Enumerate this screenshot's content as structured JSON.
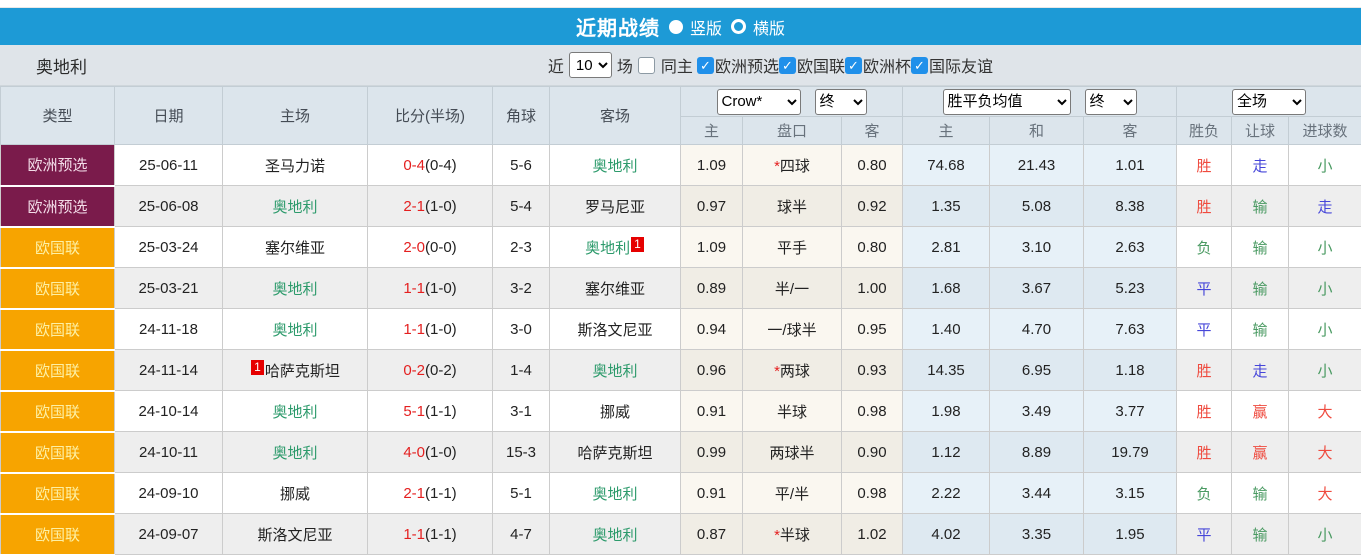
{
  "colors": {
    "accent_blue": "#1d9ad6",
    "type_maroon": "#7a1b4b",
    "type_orange": "#f7a400",
    "score_red": "#e41f1f",
    "team_green": "#2c9a6b",
    "result_red": "#ef4b3f",
    "result_green": "#4a9a62",
    "result_blue": "#4646d9",
    "checkbox_blue": "#2090ea"
  },
  "title_bar": {
    "title": "近期战绩",
    "options": [
      {
        "label": "竖版",
        "selected": true
      },
      {
        "label": "横版",
        "selected": false
      }
    ]
  },
  "filter_bar": {
    "team": "奥地利",
    "recent_label": "近",
    "recent_count": "10",
    "unit_label": "场",
    "checkboxes": [
      {
        "label": "同主",
        "checked": false
      },
      {
        "label": "欧洲预选",
        "checked": true
      },
      {
        "label": "欧国联",
        "checked": true
      },
      {
        "label": "欧洲杯",
        "checked": true
      },
      {
        "label": "国际友谊",
        "checked": true
      }
    ]
  },
  "table": {
    "main_headers": [
      "类型",
      "日期",
      "主场",
      "比分(半场)",
      "角球",
      "客场"
    ],
    "selects": {
      "company": "Crow*",
      "company_time": "终",
      "average": "胜平负均值",
      "average_time": "终",
      "scope": "全场"
    },
    "sub_headers": [
      "主",
      "盘口",
      "客",
      "主",
      "和",
      "客",
      "胜负",
      "让球",
      "进球数"
    ],
    "rows": [
      {
        "type": "欧洲预选",
        "type_style": "maroon",
        "date": "25-06-11",
        "home": "圣马力诺",
        "home_green": false,
        "home_badge": "",
        "score": "0-4",
        "half": "(0-4)",
        "corners": "5-6",
        "away": "奥地利",
        "away_green": true,
        "away_badge": "",
        "odds_home": "1.09",
        "handicap_star": "*",
        "handicap": "四球",
        "odds_away": "0.80",
        "avg_win": "74.68",
        "avg_draw": "21.43",
        "avg_lose": "1.01",
        "result": "胜",
        "result_color": "red",
        "handicap_result": "走",
        "handicap_result_color": "blue",
        "goals": "小",
        "goals_color": "green"
      },
      {
        "type": "欧洲预选",
        "type_style": "maroon",
        "date": "25-06-08",
        "home": "奥地利",
        "home_green": true,
        "home_badge": "",
        "score": "2-1",
        "half": "(1-0)",
        "corners": "5-4",
        "away": "罗马尼亚",
        "away_green": false,
        "away_badge": "",
        "odds_home": "0.97",
        "handicap_star": "",
        "handicap": "球半",
        "odds_away": "0.92",
        "avg_win": "1.35",
        "avg_draw": "5.08",
        "avg_lose": "8.38",
        "result": "胜",
        "result_color": "red",
        "handicap_result": "输",
        "handicap_result_color": "green",
        "goals": "走",
        "goals_color": "blue"
      },
      {
        "type": "欧国联",
        "type_style": "orange",
        "date": "25-03-24",
        "home": "塞尔维亚",
        "home_green": false,
        "home_badge": "",
        "score": "2-0",
        "half": "(0-0)",
        "corners": "2-3",
        "away": "奥地利",
        "away_green": true,
        "away_badge": "1",
        "odds_home": "1.09",
        "handicap_star": "",
        "handicap": "平手",
        "odds_away": "0.80",
        "avg_win": "2.81",
        "avg_draw": "3.10",
        "avg_lose": "2.63",
        "result": "负",
        "result_color": "green",
        "handicap_result": "输",
        "handicap_result_color": "green",
        "goals": "小",
        "goals_color": "green"
      },
      {
        "type": "欧国联",
        "type_style": "orange",
        "date": "25-03-21",
        "home": "奥地利",
        "home_green": true,
        "home_badge": "",
        "score": "1-1",
        "half": "(1-0)",
        "corners": "3-2",
        "away": "塞尔维亚",
        "away_green": false,
        "away_badge": "",
        "odds_home": "0.89",
        "handicap_star": "",
        "handicap": "半/一",
        "odds_away": "1.00",
        "avg_win": "1.68",
        "avg_draw": "3.67",
        "avg_lose": "5.23",
        "result": "平",
        "result_color": "blue",
        "handicap_result": "输",
        "handicap_result_color": "green",
        "goals": "小",
        "goals_color": "green"
      },
      {
        "type": "欧国联",
        "type_style": "orange",
        "date": "24-11-18",
        "home": "奥地利",
        "home_green": true,
        "home_badge": "",
        "score": "1-1",
        "half": "(1-0)",
        "corners": "3-0",
        "away": "斯洛文尼亚",
        "away_green": false,
        "away_badge": "",
        "odds_home": "0.94",
        "handicap_star": "",
        "handicap": "一/球半",
        "odds_away": "0.95",
        "avg_win": "1.40",
        "avg_draw": "4.70",
        "avg_lose": "7.63",
        "result": "平",
        "result_color": "blue",
        "handicap_result": "输",
        "handicap_result_color": "green",
        "goals": "小",
        "goals_color": "green"
      },
      {
        "type": "欧国联",
        "type_style": "orange",
        "date": "24-11-14",
        "home": "哈萨克斯坦",
        "home_green": false,
        "home_badge": "1",
        "score": "0-2",
        "half": "(0-2)",
        "corners": "1-4",
        "away": "奥地利",
        "away_green": true,
        "away_badge": "",
        "odds_home": "0.96",
        "handicap_star": "*",
        "handicap": "两球",
        "odds_away": "0.93",
        "avg_win": "14.35",
        "avg_draw": "6.95",
        "avg_lose": "1.18",
        "result": "胜",
        "result_color": "red",
        "handicap_result": "走",
        "handicap_result_color": "blue",
        "goals": "小",
        "goals_color": "green"
      },
      {
        "type": "欧国联",
        "type_style": "orange",
        "date": "24-10-14",
        "home": "奥地利",
        "home_green": true,
        "home_badge": "",
        "score": "5-1",
        "half": "(1-1)",
        "corners": "3-1",
        "away": "挪威",
        "away_green": false,
        "away_badge": "",
        "odds_home": "0.91",
        "handicap_star": "",
        "handicap": "半球",
        "odds_away": "0.98",
        "avg_win": "1.98",
        "avg_draw": "3.49",
        "avg_lose": "3.77",
        "result": "胜",
        "result_color": "red",
        "handicap_result": "赢",
        "handicap_result_color": "red",
        "goals": "大",
        "goals_color": "red"
      },
      {
        "type": "欧国联",
        "type_style": "orange",
        "date": "24-10-11",
        "home": "奥地利",
        "home_green": true,
        "home_badge": "",
        "score": "4-0",
        "half": "(1-0)",
        "corners": "15-3",
        "away": "哈萨克斯坦",
        "away_green": false,
        "away_badge": "",
        "odds_home": "0.99",
        "handicap_star": "",
        "handicap": "两球半",
        "odds_away": "0.90",
        "avg_win": "1.12",
        "avg_draw": "8.89",
        "avg_lose": "19.79",
        "result": "胜",
        "result_color": "red",
        "handicap_result": "赢",
        "handicap_result_color": "red",
        "goals": "大",
        "goals_color": "red"
      },
      {
        "type": "欧国联",
        "type_style": "orange",
        "date": "24-09-10",
        "home": "挪威",
        "home_green": false,
        "home_badge": "",
        "score": "2-1",
        "half": "(1-1)",
        "corners": "5-1",
        "away": "奥地利",
        "away_green": true,
        "away_badge": "",
        "odds_home": "0.91",
        "handicap_star": "",
        "handicap": "平/半",
        "odds_away": "0.98",
        "avg_win": "2.22",
        "avg_draw": "3.44",
        "avg_lose": "3.15",
        "result": "负",
        "result_color": "green",
        "handicap_result": "输",
        "handicap_result_color": "green",
        "goals": "大",
        "goals_color": "red"
      },
      {
        "type": "欧国联",
        "type_style": "orange",
        "date": "24-09-07",
        "home": "斯洛文尼亚",
        "home_green": false,
        "home_badge": "",
        "score": "1-1",
        "half": "(1-1)",
        "corners": "4-7",
        "away": "奥地利",
        "away_green": true,
        "away_badge": "",
        "odds_home": "0.87",
        "handicap_star": "*",
        "handicap": "半球",
        "odds_away": "1.02",
        "avg_win": "4.02",
        "avg_draw": "3.35",
        "avg_lose": "1.95",
        "result": "平",
        "result_color": "blue",
        "handicap_result": "输",
        "handicap_result_color": "green",
        "goals": "小",
        "goals_color": "green"
      }
    ]
  }
}
